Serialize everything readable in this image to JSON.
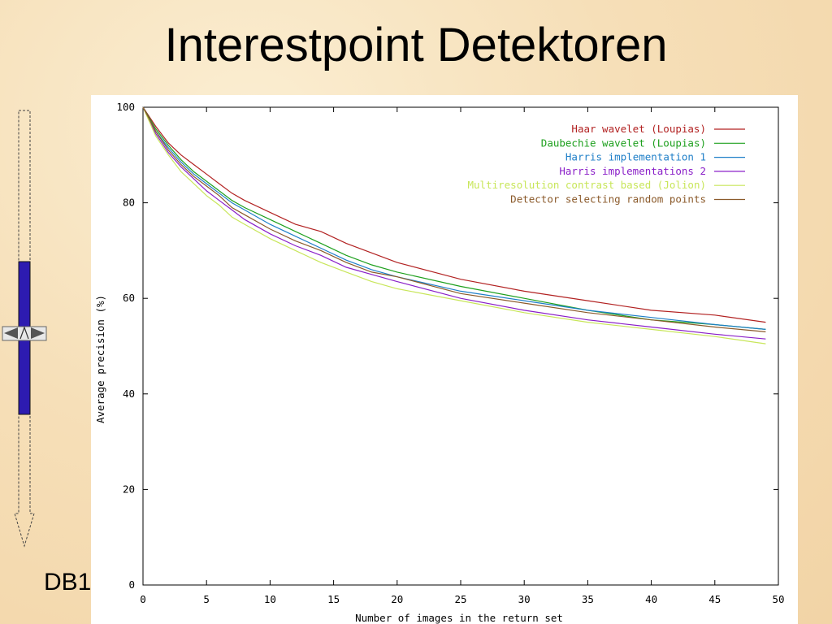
{
  "slide": {
    "title": "Interestpoint Detektoren",
    "footer_label": "DB1"
  },
  "scroll_widget": {
    "icon": "double-arrow-scroll-icon",
    "bar_color": "#2d1bb0"
  },
  "chart_data": {
    "type": "line",
    "title": "",
    "xlabel": "Number of images in the return set",
    "ylabel": "Average precision (%)",
    "xlim": [
      0,
      50
    ],
    "ylim": [
      0,
      100
    ],
    "xticks": [
      0,
      5,
      10,
      15,
      20,
      25,
      30,
      35,
      40,
      45,
      50
    ],
    "yticks": [
      0,
      20,
      40,
      60,
      80,
      100
    ],
    "grid": false,
    "legend_position": "top-right",
    "x": [
      0,
      1,
      2,
      3,
      4,
      5,
      6,
      7,
      8,
      10,
      12,
      14,
      16,
      18,
      20,
      25,
      30,
      35,
      40,
      45,
      49
    ],
    "series": [
      {
        "name": "Haar wavelet (Loupias)",
        "color": "#b22222",
        "values": [
          100,
          96,
          92.5,
          90,
          88,
          86,
          84,
          82,
          80.5,
          78,
          75.5,
          74,
          71.5,
          69.5,
          67.5,
          64,
          61.5,
          59.5,
          57.5,
          56.5,
          55
        ]
      },
      {
        "name": "Daubechie wavelet (Loupias)",
        "color": "#1ea01e",
        "values": [
          100,
          95.5,
          92,
          89,
          86.5,
          84.5,
          82.5,
          80.5,
          79,
          76.5,
          74,
          71.5,
          69,
          67,
          65.5,
          62.5,
          60,
          57.5,
          55.5,
          54.5,
          53.5
        ]
      },
      {
        "name": "Harris implementation 1",
        "color": "#1f7fc8",
        "values": [
          100,
          95,
          91.5,
          88.5,
          86,
          84,
          82,
          80,
          78.5,
          75.5,
          73,
          70.5,
          68,
          66,
          64.5,
          61.5,
          59.5,
          57.5,
          56,
          54.5,
          53.5
        ]
      },
      {
        "name": "Harris implementations 2",
        "color": "#8a1fc8",
        "values": [
          100,
          94.5,
          90.5,
          87.5,
          85,
          82.5,
          80.5,
          78.5,
          76.5,
          73.5,
          71,
          69,
          66.5,
          65,
          63.5,
          60,
          57.5,
          55.5,
          54,
          52.5,
          51.5
        ]
      },
      {
        "name": "Multiresolution contrast based (Jolion)",
        "color": "#c8e65a",
        "values": [
          100,
          94,
          90,
          86.5,
          84,
          81.5,
          79.5,
          77,
          75.5,
          72.5,
          70,
          67.5,
          65.5,
          63.5,
          62,
          59.5,
          57,
          55,
          53.5,
          52,
          50.5
        ]
      },
      {
        "name": "Detector selecting random points",
        "color": "#8b5a2b",
        "values": [
          100,
          95,
          91,
          88,
          85.5,
          83.5,
          81.5,
          79,
          77.5,
          74.5,
          72,
          70,
          67.5,
          65.5,
          64.5,
          61,
          59,
          57,
          55.5,
          54,
          53
        ]
      }
    ]
  }
}
